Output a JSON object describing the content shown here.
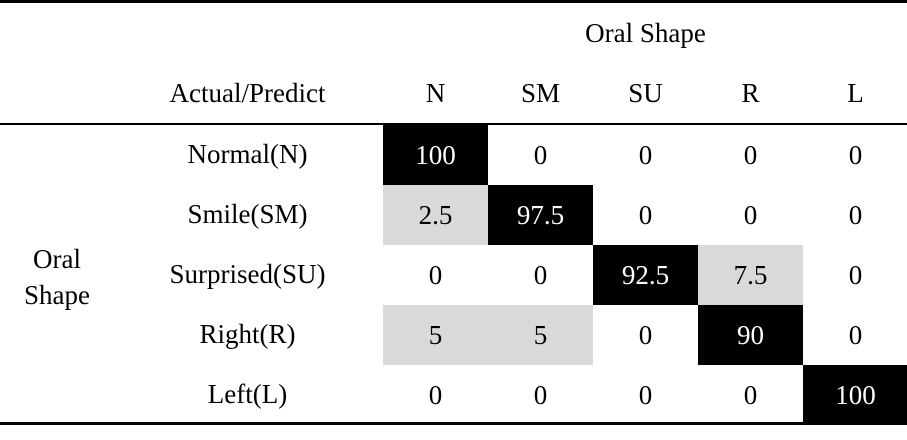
{
  "table": {
    "group_title": "Oral Shape",
    "corner_label": "Actual/Predict",
    "side_label": "Oral Shape",
    "columns": [
      "N",
      "SM",
      "SU",
      "R",
      "L"
    ],
    "rows": [
      {
        "label": "Normal(N)",
        "values": [
          "100",
          "0",
          "0",
          "0",
          "0"
        ],
        "shade": [
          "dark",
          "none",
          "none",
          "none",
          "none"
        ]
      },
      {
        "label": "Smile(SM)",
        "values": [
          "2.5",
          "97.5",
          "0",
          "0",
          "0"
        ],
        "shade": [
          "light",
          "dark",
          "none",
          "none",
          "none"
        ]
      },
      {
        "label": "Surprised(SU)",
        "values": [
          "0",
          "0",
          "92.5",
          "7.5",
          "0"
        ],
        "shade": [
          "none",
          "none",
          "dark",
          "light",
          "none"
        ]
      },
      {
        "label": "Right(R)",
        "values": [
          "5",
          "5",
          "0",
          "90",
          "0"
        ],
        "shade": [
          "light",
          "light",
          "none",
          "dark",
          "none"
        ]
      },
      {
        "label": "Left(L)",
        "values": [
          "0",
          "0",
          "0",
          "0",
          "100"
        ],
        "shade": [
          "none",
          "none",
          "none",
          "none",
          "dark"
        ]
      }
    ]
  },
  "colors": {
    "dark_cell": "#000000",
    "light_cell": "#d9d9d9"
  }
}
